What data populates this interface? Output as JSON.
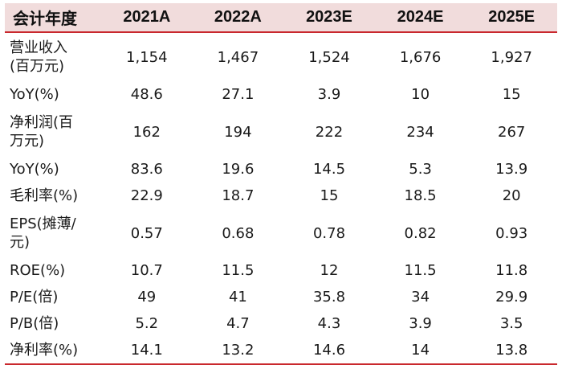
{
  "headers": [
    "会计年度",
    "2021A",
    "2022A",
    "2023E",
    "2024E",
    "2025E"
  ],
  "rows": [
    {
      "label": [
        "营业收入",
        "(百万元)"
      ],
      "values": [
        "1,154",
        "1,467",
        "1,524",
        "1,676",
        "1,927"
      ]
    },
    {
      "label": [
        "YoY(%)"
      ],
      "values": [
        "48.6",
        "27.1",
        "3.9",
        "10",
        "15"
      ]
    },
    {
      "label": [
        "净利润(百",
        "万元)"
      ],
      "values": [
        "162",
        "194",
        "222",
        "234",
        "267"
      ]
    },
    {
      "label": [
        "YoY(%)"
      ],
      "values": [
        "83.6",
        "19.6",
        "14.5",
        "5.3",
        "13.9"
      ]
    },
    {
      "label": [
        "毛利率(%)"
      ],
      "values": [
        "22.9",
        "18.7",
        "15",
        "18.5",
        "20"
      ]
    },
    {
      "label": [
        "EPS(摊薄/",
        "元)"
      ],
      "values": [
        "0.57",
        "0.68",
        "0.78",
        "0.82",
        "0.93"
      ]
    },
    {
      "label": [
        "ROE(%)"
      ],
      "values": [
        "10.7",
        "11.5",
        "12",
        "11.5",
        "11.8"
      ]
    },
    {
      "label": [
        "P/E(倍)"
      ],
      "values": [
        "49",
        "41",
        "35.8",
        "34",
        "29.9"
      ]
    },
    {
      "label": [
        "P/B(倍)"
      ],
      "values": [
        "5.2",
        "4.7",
        "4.3",
        "3.9",
        "3.5"
      ]
    },
    {
      "label": [
        "净利率(%)"
      ],
      "values": [
        "14.1",
        "13.2",
        "14.6",
        "14",
        "13.8"
      ]
    }
  ],
  "colors": {
    "accent_line": "#c9282d",
    "header_bg": "#f1dcdc"
  }
}
